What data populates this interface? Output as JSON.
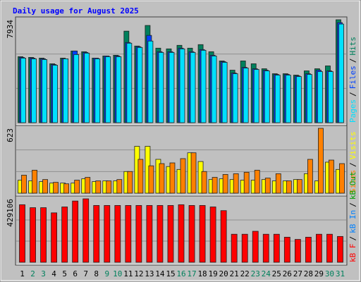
{
  "chart_data": {
    "type": "bar",
    "title": "Daily usage for August 2025",
    "categories": [
      "1",
      "2",
      "3",
      "4",
      "5",
      "6",
      "7",
      "8",
      "9",
      "10",
      "11",
      "12",
      "13",
      "14",
      "15",
      "16",
      "17",
      "18",
      "19",
      "20",
      "21",
      "22",
      "23",
      "24",
      "25",
      "26",
      "27",
      "28",
      "29",
      "30",
      "31"
    ],
    "category_colors": [
      "#000000",
      "#00805c",
      "#00805c",
      "#000000",
      "#000000",
      "#000000",
      "#000000",
      "#000000",
      "#00805c",
      "#00805c",
      "#000000",
      "#000000",
      "#000000",
      "#000000",
      "#000000",
      "#00805c",
      "#00805c",
      "#000000",
      "#000000",
      "#000000",
      "#000000",
      "#000000",
      "#00805c",
      "#00805c",
      "#000000",
      "#000000",
      "#000000",
      "#000000",
      "#000000",
      "#00805c",
      "#00805c"
    ],
    "separator": "/",
    "panels": [
      {
        "ylim": [
          0,
          7934
        ],
        "yticks": [
          7934
        ],
        "series": [
          {
            "name": "Hits",
            "color": "#00805c",
            "values": [
              5087,
              5032,
              4978,
              4540,
              4978,
              5525,
              5470,
              4978,
              5142,
              5197,
              7056,
              5908,
              7494,
              5744,
              5689,
              5962,
              5744,
              6017,
              5470,
              4759,
              4048,
              4759,
              4540,
              4157,
              3774,
              3774,
              3665,
              3993,
              4157,
              4376,
              7934
            ]
          },
          {
            "name": "Files",
            "color": "#0040ff",
            "values": [
              5032,
              4978,
              4923,
              4485,
              4923,
              5525,
              5415,
              4978,
              5142,
              5142,
              6181,
              5853,
              6728,
              5470,
              5470,
              5744,
              5470,
              5634,
              5197,
              4704,
              3829,
              4267,
              4157,
              4048,
              3720,
              3720,
              3610,
              3774,
              4048,
              3993,
              7713
            ]
          },
          {
            "name": "Pages",
            "color": "#00e0ff",
            "values": [
              4978,
              4923,
              4868,
              4431,
              4923,
              5251,
              5361,
              4923,
              5087,
              5087,
              6126,
              5798,
              6291,
              5415,
              5415,
              5689,
              5415,
              5579,
              5142,
              4650,
              3774,
              4212,
              4103,
              3993,
              3665,
              3665,
              3556,
              3720,
              3938,
              3938,
              7603
            ]
          }
        ]
      },
      {
        "ylim": [
          0,
          623
        ],
        "yticks": [
          623
        ],
        "series": [
          {
            "name": "Visits",
            "color": "#ffff00",
            "values": [
              125,
              118,
              111,
              97,
              97,
              97,
              138,
              111,
              118,
              118,
              208,
              450,
              450,
              325,
              256,
              228,
              388,
              304,
              131,
              138,
              131,
              125,
              125,
              131,
              118,
              118,
              131,
              187,
              118,
              298,
              228
            ]
          },
          {
            "name": "Sites",
            "color": "#ff8000",
            "values": [
              173,
              221,
              131,
              104,
              90,
              125,
              152,
              118,
              118,
              131,
              208,
              325,
              263,
              284,
              291,
              332,
              388,
              208,
              152,
              180,
              187,
              201,
              221,
              145,
              187,
              118,
              131,
              325,
              623,
              318,
              284
            ]
          }
        ]
      },
      {
        "ylim": [
          0,
          429106
        ],
        "yticks": [
          429106
        ],
        "series": [
          {
            "name": "kB F",
            "color": "#ff0000",
            "values": [
              389220,
              369260,
              369260,
              334330,
              374250,
              414170,
              429106,
              384230,
              384230,
              384230,
              384230,
              384230,
              384230,
              384230,
              384230,
              389220,
              384230,
              384230,
              374250,
              349300,
              189620,
              189620,
              209580,
              189620,
              189620,
              169660,
              154690,
              169660,
              189620,
              189620,
              174650
            ]
          }
        ],
        "legend_only": [
          {
            "name": "kB In",
            "color": "#0080ff"
          },
          {
            "name": "kB Out",
            "color": "#00a000"
          }
        ]
      }
    ]
  }
}
